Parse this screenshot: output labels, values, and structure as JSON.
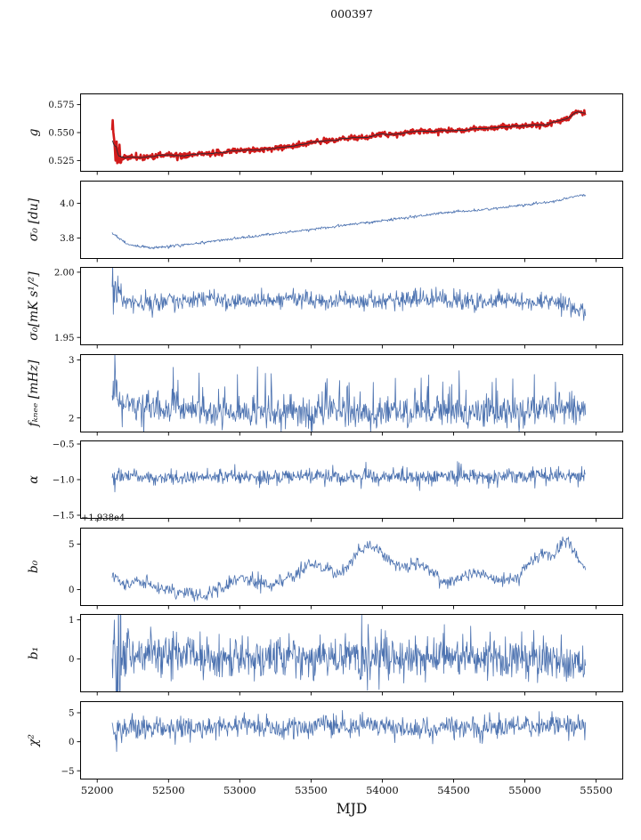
{
  "title": "000397",
  "chart_data": {
    "type": "line",
    "title": "000397",
    "xlabel": "MJD",
    "grid": false,
    "legend": "none",
    "xlim": [
      51880,
      55690
    ],
    "x_ticks": [
      52000,
      52500,
      53000,
      53500,
      54000,
      54500,
      55000,
      55500
    ],
    "x_tick_labels": [
      "52000",
      "52500",
      "53000",
      "53500",
      "54000",
      "54500",
      "55000",
      "55500"
    ],
    "data_x_range": [
      52105,
      55425
    ],
    "panels": [
      {
        "name": "g",
        "ylabel": "g",
        "ylim": [
          0.515,
          0.585
        ],
        "yticks": [
          0.525,
          0.55,
          0.575
        ],
        "ytick_labels": [
          "0.525",
          "0.550",
          "0.575"
        ],
        "color": "#d11a1a",
        "core_color": "#2b2b33",
        "points": 850,
        "noise": 0.0012,
        "burst": 5,
        "spike_prob": 0,
        "spike_amp": 0,
        "spike_sign": "both",
        "seed": 11,
        "trend": [
          [
            52105,
            0.545
          ],
          [
            52130,
            0.529
          ],
          [
            52200,
            0.5275
          ],
          [
            52350,
            0.528
          ],
          [
            52500,
            0.53
          ],
          [
            52600,
            0.5295
          ],
          [
            52750,
            0.531
          ],
          [
            52900,
            0.5325
          ],
          [
            53000,
            0.534
          ],
          [
            53100,
            0.5345
          ],
          [
            53250,
            0.536
          ],
          [
            53400,
            0.539
          ],
          [
            53500,
            0.541
          ],
          [
            53650,
            0.5435
          ],
          [
            53800,
            0.5455
          ],
          [
            53900,
            0.546
          ],
          [
            54000,
            0.548
          ],
          [
            54100,
            0.549
          ],
          [
            54250,
            0.551
          ],
          [
            54400,
            0.5515
          ],
          [
            54500,
            0.552
          ],
          [
            54600,
            0.5525
          ],
          [
            54750,
            0.5535
          ],
          [
            54900,
            0.5555
          ],
          [
            55000,
            0.5565
          ],
          [
            55100,
            0.5575
          ],
          [
            55150,
            0.557
          ],
          [
            55250,
            0.561
          ],
          [
            55300,
            0.5625
          ],
          [
            55330,
            0.566
          ],
          [
            55380,
            0.569
          ],
          [
            55425,
            0.567
          ]
        ]
      },
      {
        "name": "sigma0_du",
        "ylabel": "σ₀ [du]",
        "ylim": [
          3.68,
          4.13
        ],
        "yticks": [
          3.8,
          4.0
        ],
        "ytick_labels": [
          "3.8",
          "4.0"
        ],
        "color": "#4c72b0",
        "points": 750,
        "noise": 0.004,
        "burst": 0,
        "spike_prob": 0,
        "spike_amp": 0,
        "spike_sign": "both",
        "seed": 22,
        "trend": [
          [
            52105,
            3.83
          ],
          [
            52200,
            3.77
          ],
          [
            52300,
            3.75
          ],
          [
            52400,
            3.745
          ],
          [
            52600,
            3.76
          ],
          [
            52800,
            3.78
          ],
          [
            53000,
            3.8
          ],
          [
            53300,
            3.83
          ],
          [
            53600,
            3.86
          ],
          [
            53900,
            3.89
          ],
          [
            54200,
            3.92
          ],
          [
            54500,
            3.95
          ],
          [
            54800,
            3.97
          ],
          [
            55000,
            3.99
          ],
          [
            55200,
            4.01
          ],
          [
            55300,
            4.03
          ],
          [
            55425,
            4.05
          ]
        ]
      },
      {
        "name": "sigma0_mks",
        "ylabel": "σ₀[mK s¹/²]",
        "ylim": [
          1.944,
          2.004
        ],
        "yticks": [
          1.95,
          2.0
        ],
        "ytick_labels": [
          "1.95",
          "2.00"
        ],
        "color": "#4c72b0",
        "points": 850,
        "noise": 0.0035,
        "burst": 3,
        "spike_prob": 0.04,
        "spike_amp": 0.006,
        "spike_sign": "both",
        "seed": 33,
        "trend": [
          [
            52105,
            1.985
          ],
          [
            52150,
            1.979
          ],
          [
            52300,
            1.977
          ],
          [
            52500,
            1.9775
          ],
          [
            52700,
            1.979
          ],
          [
            53000,
            1.978
          ],
          [
            53300,
            1.979
          ],
          [
            53600,
            1.9785
          ],
          [
            53900,
            1.978
          ],
          [
            54200,
            1.979
          ],
          [
            54500,
            1.978
          ],
          [
            54800,
            1.9775
          ],
          [
            55000,
            1.978
          ],
          [
            55200,
            1.977
          ],
          [
            55300,
            1.974
          ],
          [
            55425,
            1.969
          ]
        ]
      },
      {
        "name": "f_knee",
        "ylabel": "fₖₙₑₑ [mHz]",
        "ylim": [
          1.75,
          3.1
        ],
        "yticks": [
          2,
          3
        ],
        "ytick_labels": [
          "2",
          "3"
        ],
        "color": "#4c72b0",
        "points": 900,
        "noise": 0.13,
        "burst": 0,
        "spike_prob": 0.07,
        "spike_amp": 0.6,
        "spike_sign": "pos",
        "seed": 44,
        "trend": [
          [
            52105,
            2.35
          ],
          [
            52250,
            2.2
          ],
          [
            52500,
            2.15
          ],
          [
            53000,
            2.12
          ],
          [
            53500,
            2.1
          ],
          [
            54000,
            2.1
          ],
          [
            54500,
            2.1
          ],
          [
            55000,
            2.12
          ],
          [
            55200,
            2.2
          ],
          [
            55425,
            2.1
          ]
        ]
      },
      {
        "name": "alpha",
        "ylabel": "α",
        "ylim": [
          -1.55,
          -0.45
        ],
        "yticks": [
          -1.5,
          -1.0,
          -0.5
        ],
        "ytick_labels": [
          "−1.5",
          "−1.0",
          "−0.5"
        ],
        "color": "#4c72b0",
        "points": 900,
        "noise": 0.05,
        "burst": 0,
        "spike_prob": 0.06,
        "spike_amp": 0.15,
        "spike_sign": "both",
        "seed": 55,
        "trend": [
          [
            52105,
            -0.97
          ],
          [
            52800,
            -0.96
          ],
          [
            53500,
            -0.96
          ],
          [
            54200,
            -0.955
          ],
          [
            54900,
            -0.96
          ],
          [
            55425,
            -0.955
          ]
        ]
      },
      {
        "name": "b0",
        "ylabel": "b₀",
        "offset_text": "+1.938e4",
        "ylim": [
          -1.8,
          6.8
        ],
        "yticks": [
          0,
          5
        ],
        "ytick_labels": [
          "0",
          "5"
        ],
        "color": "#4c72b0",
        "points": 750,
        "noise": 0.35,
        "burst": 0,
        "spike_prob": 0.02,
        "spike_amp": 0.5,
        "spike_sign": "both",
        "seed": 66,
        "trend": [
          [
            52105,
            1.6
          ],
          [
            52180,
            0.7
          ],
          [
            52300,
            1.1
          ],
          [
            52450,
            0.1
          ],
          [
            52600,
            -0.4
          ],
          [
            52750,
            -0.6
          ],
          [
            52900,
            0.5
          ],
          [
            53000,
            1.4
          ],
          [
            53100,
            0.9
          ],
          [
            53200,
            0.4
          ],
          [
            53350,
            1.3
          ],
          [
            53500,
            2.9
          ],
          [
            53600,
            2.3
          ],
          [
            53680,
            1.6
          ],
          [
            53780,
            3.0
          ],
          [
            53880,
            5.0
          ],
          [
            53960,
            4.6
          ],
          [
            54050,
            3.2
          ],
          [
            54150,
            2.3
          ],
          [
            54250,
            3.0
          ],
          [
            54350,
            2.0
          ],
          [
            54450,
            0.7
          ],
          [
            54550,
            1.3
          ],
          [
            54650,
            1.9
          ],
          [
            54750,
            1.4
          ],
          [
            54850,
            0.9
          ],
          [
            54950,
            1.3
          ],
          [
            55050,
            3.3
          ],
          [
            55150,
            4.1
          ],
          [
            55200,
            3.6
          ],
          [
            55280,
            5.6
          ],
          [
            55340,
            4.4
          ],
          [
            55425,
            2.1
          ]
        ]
      },
      {
        "name": "b1",
        "ylabel": "b₁",
        "ylim": [
          -0.85,
          1.15
        ],
        "yticks": [
          0,
          1
        ],
        "ytick_labels": [
          "0",
          "1"
        ],
        "color": "#4c72b0",
        "points": 900,
        "noise": 0.27,
        "burst": 4,
        "spike_prob": 0.03,
        "spike_amp": 0.4,
        "spike_sign": "both",
        "seed": 77,
        "trend": [
          [
            52105,
            0.1
          ],
          [
            53000,
            0.05
          ],
          [
            54000,
            0.05
          ],
          [
            55000,
            0.05
          ],
          [
            55425,
            -0.1
          ]
        ]
      },
      {
        "name": "chi2",
        "ylabel": "χ²",
        "ylim": [
          -6.5,
          7.0
        ],
        "yticks": [
          -5,
          0,
          5
        ],
        "ytick_labels": [
          "−5",
          "0",
          "5"
        ],
        "color": "#4c72b0",
        "points": 850,
        "noise": 1.0,
        "burst": 0,
        "spike_prob": 0.03,
        "spike_amp": 1.5,
        "spike_sign": "both",
        "seed": 88,
        "trend": [
          [
            52105,
            2.4
          ],
          [
            52400,
            2.6
          ],
          [
            52700,
            2.2
          ],
          [
            53000,
            2.8
          ],
          [
            53300,
            2.3
          ],
          [
            53600,
            2.7
          ],
          [
            53900,
            3.0
          ],
          [
            54200,
            2.2
          ],
          [
            54500,
            2.6
          ],
          [
            54800,
            2.3
          ],
          [
            55100,
            3.0
          ],
          [
            55300,
            2.8
          ],
          [
            55425,
            2.5
          ]
        ]
      }
    ]
  }
}
